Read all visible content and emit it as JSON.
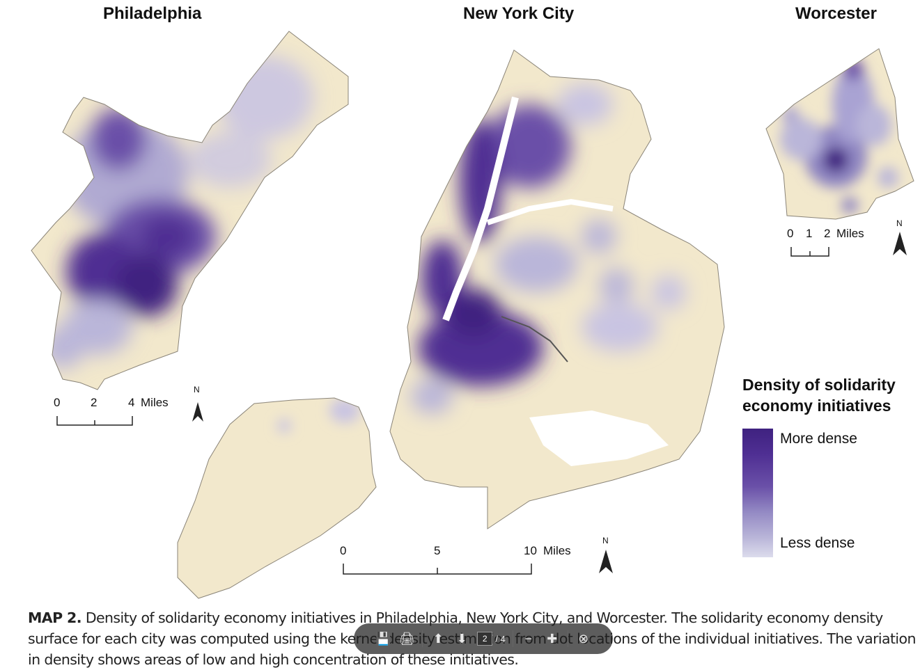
{
  "cities": {
    "philadelphia": "Philadelphia",
    "nyc": "New York City",
    "worcester": "Worcester"
  },
  "scales": {
    "philadelphia": {
      "ticks": [
        "0",
        "2",
        "4"
      ],
      "unit": "Miles"
    },
    "nyc": {
      "ticks": [
        "0",
        "5",
        "10"
      ],
      "unit": "Miles"
    },
    "worcester": {
      "ticks": [
        "0",
        "1",
        "2"
      ],
      "unit": "Miles"
    }
  },
  "north_label": "N",
  "legend": {
    "title_line1": "Density of solidarity",
    "title_line2": "economy initiatives",
    "more": "More dense",
    "less": "Less dense"
  },
  "caption": {
    "label": "MAP 2.",
    "text": "Density of solidarity economy initiatives in Philadelphia, New York City, and Worcester. The solidarity economy density surface for each city was computed using the kernel density estimation from dot locations of the individual initiatives. The variation in density shows areas of low and high concentration of these initiatives."
  },
  "viewer_toolbar": {
    "current_page": "2",
    "total_pages": "/ 4"
  },
  "colors": {
    "land": "#f2e8cc",
    "dense": "#3f2280",
    "light": "#c9c4e2"
  }
}
